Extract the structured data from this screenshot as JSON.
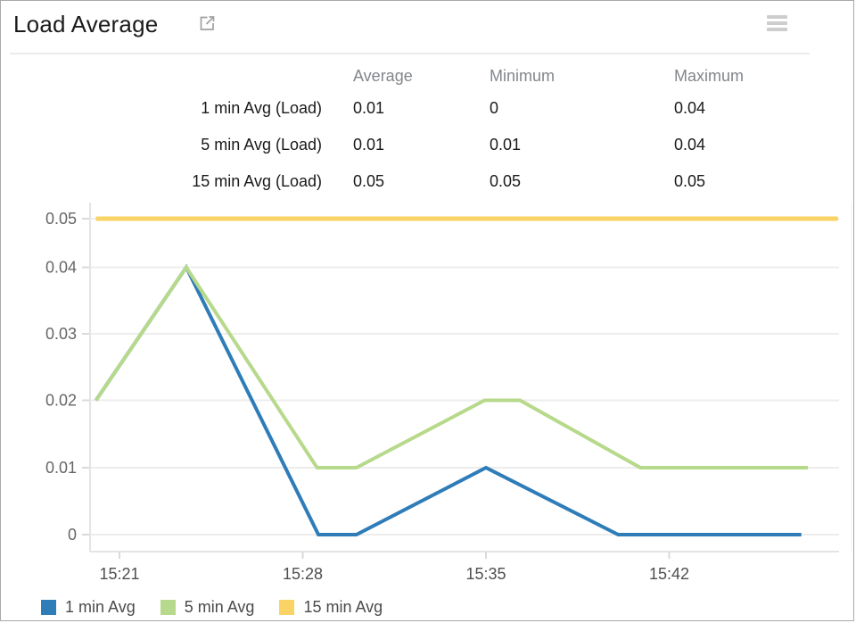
{
  "header": {
    "title": "Load Average",
    "open_icon": "external-link-icon",
    "menu_icon": "hamburger-menu-icon"
  },
  "stats_table": {
    "columns": [
      "Average",
      "Minimum",
      "Maximum"
    ],
    "rows": [
      {
        "label": "1 min Avg (Load)",
        "values": [
          "0.01",
          "0",
          "0.04"
        ]
      },
      {
        "label": "5 min Avg (Load)",
        "values": [
          "0.01",
          "0.01",
          "0.04"
        ]
      },
      {
        "label": "15 min Avg (Load)",
        "values": [
          "0.05",
          "0.05",
          "0.05"
        ]
      }
    ]
  },
  "chart_data": {
    "type": "line",
    "title": "Load Average",
    "x_axis": {
      "unit": "minutes after 15:00",
      "tick_minutes": [
        21,
        28,
        35,
        42
      ],
      "tick_labels": [
        "15:21",
        "15:28",
        "15:35",
        "15:42"
      ]
    },
    "y_axis": {
      "tick_values": [
        0,
        0.01,
        0.02,
        0.03,
        0.04,
        0.05
      ],
      "tick_labels": [
        "0",
        "0.01",
        "0.02",
        "0.03",
        "0.04",
        "0.05"
      ],
      "range": [
        0,
        0.05
      ],
      "grid": true
    },
    "legend_position": "bottom-left",
    "series": [
      {
        "name": "1 min Avg",
        "color": "#2e7cb8",
        "points": [
          [
            20.1,
            0.02
          ],
          [
            23.55,
            0.04
          ],
          [
            28.6,
            0
          ],
          [
            30.05,
            0
          ],
          [
            35.0,
            0.01
          ],
          [
            40.05,
            0
          ],
          [
            47.05,
            0
          ]
        ]
      },
      {
        "name": "5 min Avg",
        "color": "#b7d98b",
        "points": [
          [
            20.1,
            0.02
          ],
          [
            23.55,
            0.04
          ],
          [
            28.55,
            0.01
          ],
          [
            30.05,
            0.01
          ],
          [
            34.95,
            0.02
          ],
          [
            36.3,
            0.02
          ],
          [
            40.9,
            0.01
          ],
          [
            47.3,
            0.01
          ]
        ]
      },
      {
        "name": "15 min Avg",
        "color": "#fad365",
        "points": [
          [
            20.1,
            0.05
          ],
          [
            48.45,
            0.05
          ]
        ]
      }
    ]
  }
}
